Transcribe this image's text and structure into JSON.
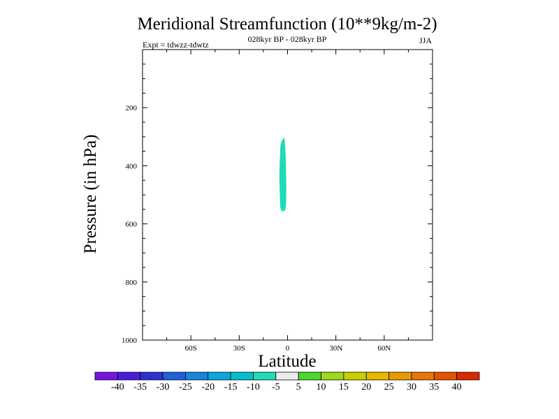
{
  "chart_data": {
    "type": "area",
    "title": "Meridional Streamfunction (10**9kg/m-2)",
    "subtitle": "028kyr BP - 028kyr BP",
    "left_label": "Expt = tdwzz-tdwtz",
    "right_label": "JJA",
    "xlabel": "Latitude",
    "ylabel": "Pressure (in hPa)",
    "xlim": [
      -90,
      90
    ],
    "ylim": [
      1000,
      0
    ],
    "x_ticks": [
      {
        "value": -60,
        "label": "60S"
      },
      {
        "value": -30,
        "label": "30S"
      },
      {
        "value": 0,
        "label": "0"
      },
      {
        "value": 30,
        "label": "30N"
      },
      {
        "value": 60,
        "label": "60N"
      }
    ],
    "y_ticks": [
      {
        "value": 200,
        "label": "200"
      },
      {
        "value": 400,
        "label": "400"
      },
      {
        "value": 600,
        "label": "600"
      },
      {
        "value": 800,
        "label": "800"
      },
      {
        "value": 1000,
        "label": "1000"
      }
    ],
    "contour_regions": [
      {
        "level_range": [
          -10,
          -5
        ],
        "color": "#1fdcb4",
        "outline": [
          [
            -2.2,
            305
          ],
          [
            -1.6,
            335
          ],
          [
            -1.2,
            390
          ],
          [
            -1.0,
            470
          ],
          [
            -1.0,
            515
          ],
          [
            -1.4,
            548
          ],
          [
            -2.2,
            555
          ],
          [
            -3.6,
            555
          ],
          [
            -4.4,
            540
          ],
          [
            -4.6,
            500
          ],
          [
            -4.9,
            440
          ],
          [
            -4.6,
            380
          ],
          [
            -4.2,
            330
          ],
          [
            -3.4,
            315
          ]
        ]
      }
    ],
    "colorbar": {
      "colors": [
        "#7b14e0",
        "#4b1cdc",
        "#2f2fd4",
        "#2060dc",
        "#1487dc",
        "#0aa8dc",
        "#00c0d2",
        "#1fdcb4",
        "#ececec",
        "#4cd82c",
        "#a0d81a",
        "#c8d000",
        "#e8b800",
        "#e89a00",
        "#e87800",
        "#e85200",
        "#dc2800"
      ],
      "labels": [
        "-40",
        "-35",
        "-30",
        "-25",
        "-20",
        "-15",
        "-10",
        "-5",
        "5",
        "10",
        "15",
        "20",
        "25",
        "30",
        "35",
        "40"
      ]
    }
  }
}
